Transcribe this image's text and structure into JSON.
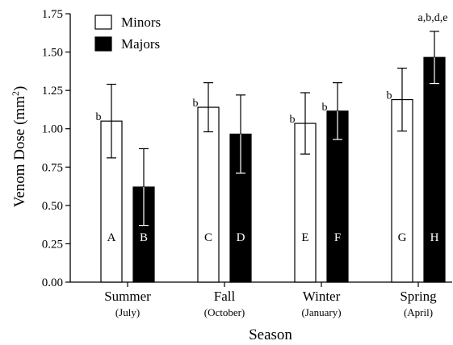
{
  "chart_data": {
    "type": "bar",
    "xlabel": "Season",
    "ylabel_main": "Venom Dose (mm",
    "ylabel_sup": "2",
    "ylabel_close": ")",
    "ylim": [
      0,
      1.75
    ],
    "yticks": [
      "0.00",
      "0.25",
      "0.50",
      "0.75",
      "1.00",
      "1.25",
      "1.50",
      "1.75"
    ],
    "grid": false,
    "legend_position": "top-left",
    "categories": [
      {
        "name": "Summer",
        "sub": "(July)"
      },
      {
        "name": "Fall",
        "sub": "(October)"
      },
      {
        "name": "Winter",
        "sub": "(January)"
      },
      {
        "name": "Spring",
        "sub": "(April)"
      }
    ],
    "series": [
      {
        "name": "Minors",
        "color": "#ffffff",
        "letter_color": "#000000",
        "values": [
          1.05,
          1.14,
          1.035,
          1.19
        ],
        "errors": [
          0.24,
          0.16,
          0.2,
          0.205
        ],
        "bar_letters": [
          "A",
          "C",
          "E",
          "G"
        ],
        "sig_labels": [
          "b",
          "b",
          "b",
          "b"
        ]
      },
      {
        "name": "Majors",
        "color": "#000000",
        "letter_color": "#ffffff",
        "values": [
          0.62,
          0.965,
          1.115,
          1.465
        ],
        "errors": [
          0.25,
          0.255,
          0.185,
          0.17
        ],
        "bar_letters": [
          "B",
          "D",
          "F",
          "H"
        ],
        "sig_labels": [
          "",
          "",
          "b",
          "a,b,d,e"
        ]
      }
    ]
  }
}
